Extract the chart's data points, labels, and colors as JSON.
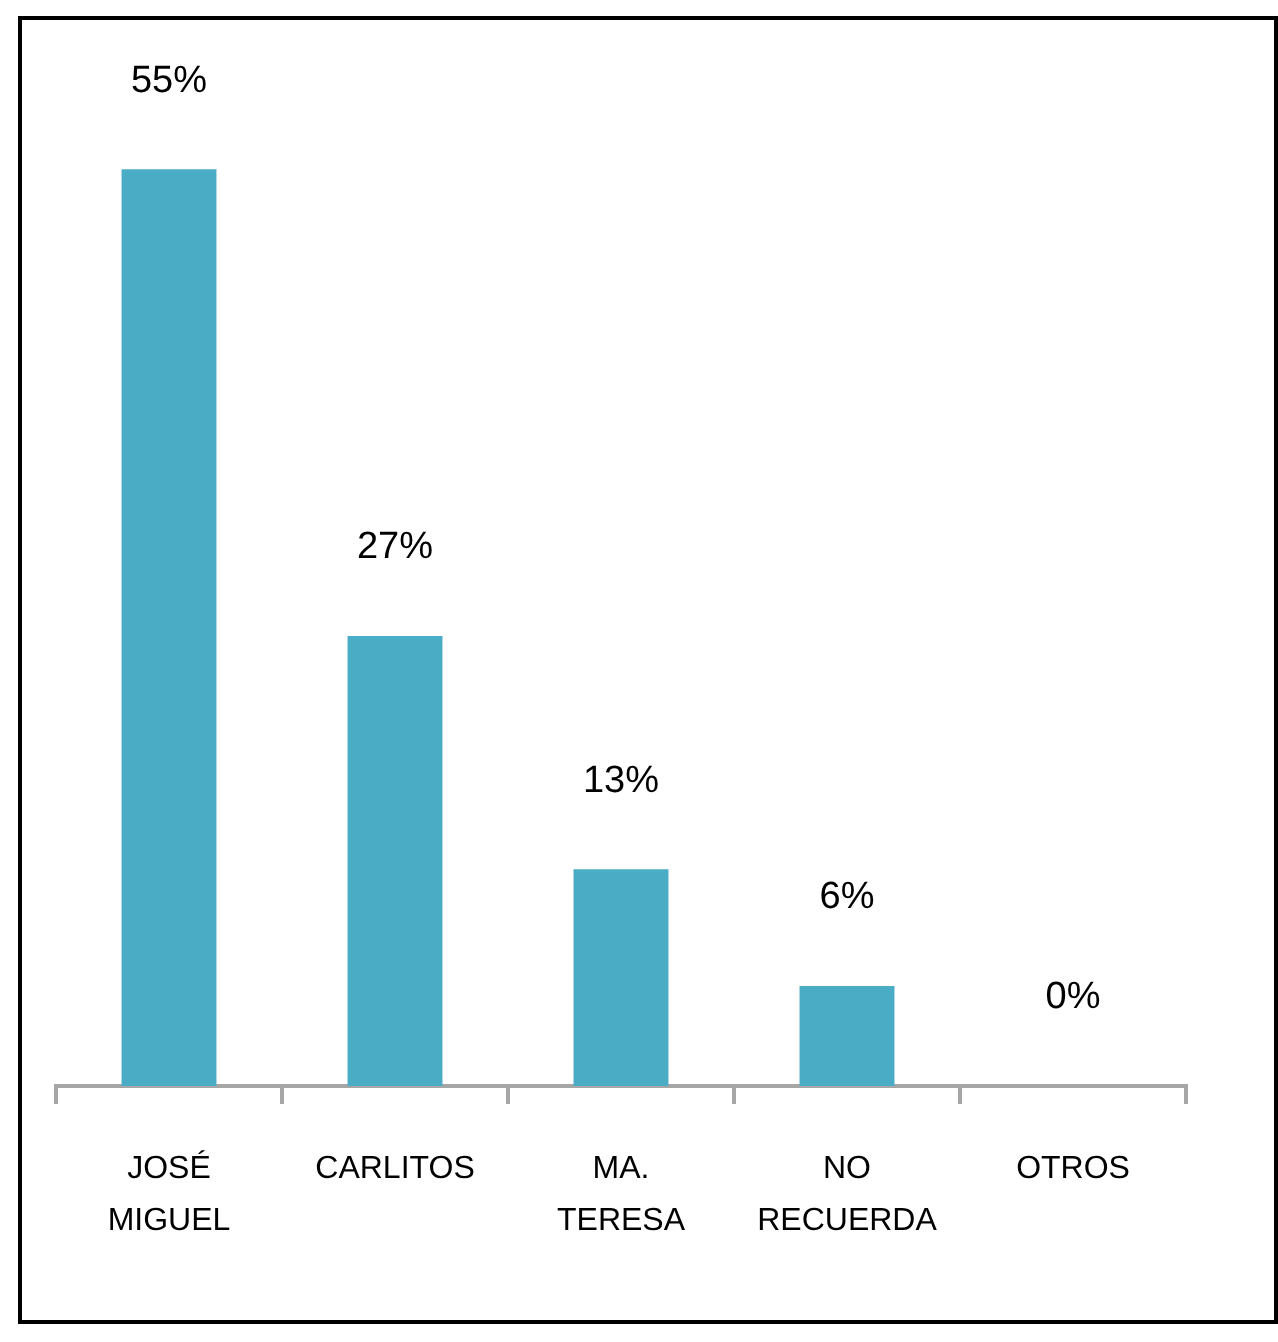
{
  "chart_data": {
    "type": "bar",
    "categories": [
      "JOSÉ MIGUEL",
      "CARLITOS",
      "MA. TERESA",
      "NO RECUERDA",
      "OTROS"
    ],
    "values": [
      55,
      27,
      13,
      6,
      0
    ],
    "value_labels": [
      "55%",
      "27%",
      "13%",
      "6%",
      "0%"
    ],
    "color": "#4bacc6"
  }
}
